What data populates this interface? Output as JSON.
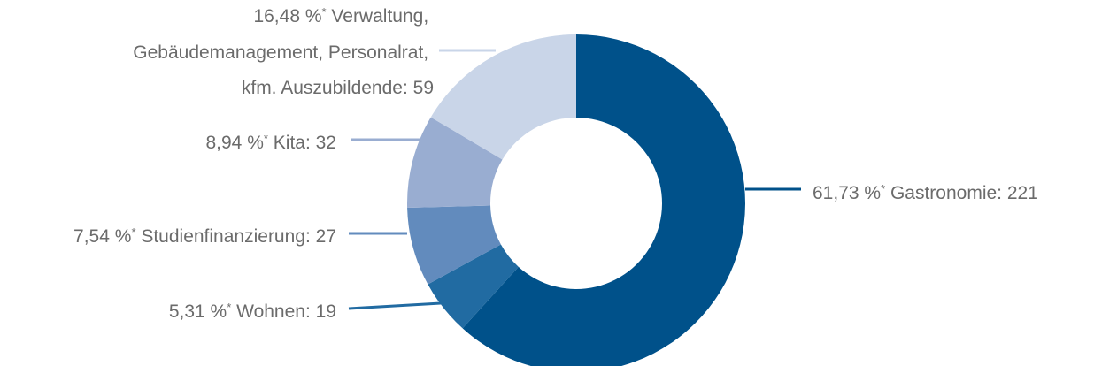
{
  "chart_data": {
    "type": "pie",
    "donut": true,
    "start": "12 o'clock",
    "direction": "clockwise",
    "slices": [
      {
        "key": "gastronomie",
        "name": "Gastronomie",
        "percent": 61.73,
        "count": 221,
        "pct_label": "61,73 %",
        "mark": "*",
        "label_rest": " Gastronomie: 221",
        "color": "#00518a"
      },
      {
        "key": "wohnen",
        "name": "Wohnen",
        "percent": 5.31,
        "count": 19,
        "pct_label": "5,31 %",
        "mark": "*",
        "label_rest": " Wohnen: 19",
        "color": "#216ba2"
      },
      {
        "key": "studienfinanzierung",
        "name": "Studienfinanzierung",
        "percent": 7.54,
        "count": 27,
        "pct_label": "7,54 %",
        "mark": "*",
        "label_rest": " Studienfinanzierung: 27",
        "color": "#628bbd"
      },
      {
        "key": "kita",
        "name": "Kita",
        "percent": 8.94,
        "count": 32,
        "pct_label": "8,94 %",
        "mark": "*",
        "label_rest": " Kita: 32",
        "color": "#99add1"
      },
      {
        "key": "verwaltung",
        "name": "Verwaltung, Gebäudemanagement, Personalrat, kfm. Auszubildende",
        "percent": 16.48,
        "count": 59,
        "pct_label": "16,48 %",
        "mark": "*",
        "label_rest": " Verwaltung,",
        "label_line2": "Gebäudemanagement, Personalrat,",
        "label_line3": "kfm. Auszubildende: 59",
        "color": "#c9d5e8"
      }
    ]
  }
}
